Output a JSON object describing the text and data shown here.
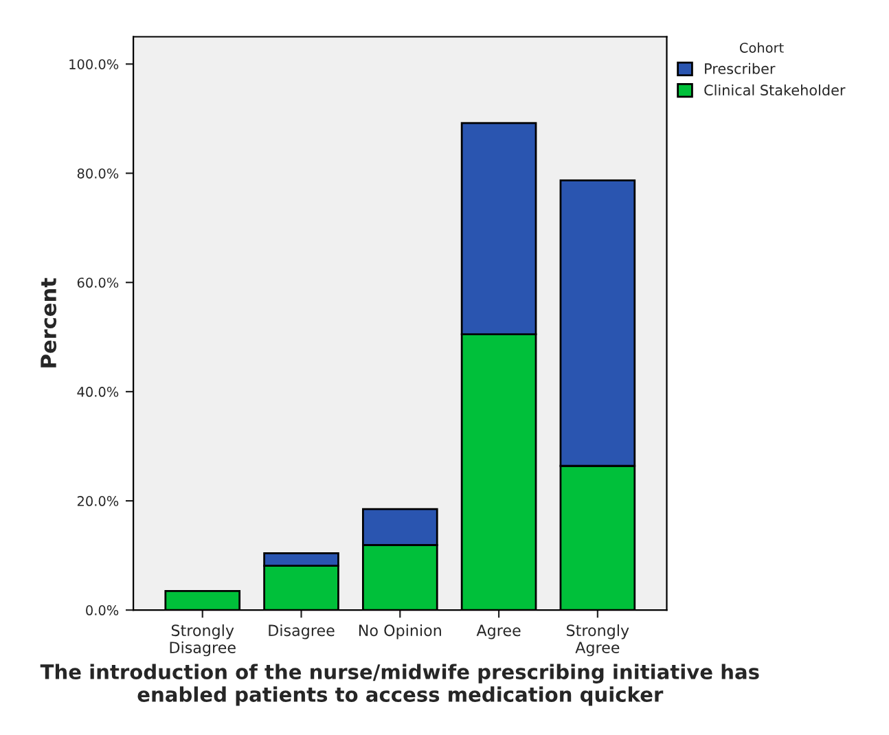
{
  "chart_data": {
    "type": "bar",
    "stacked": true,
    "xlabel": "The introduction of the nurse/midwife prescribing initiative has enabled patients to access medication quicker",
    "ylabel": "Percent",
    "legend_title": "Cohort",
    "legend": "top right",
    "categories": [
      "Strongly\nDisagree",
      "Disagree",
      "No Opinion",
      "Agree",
      "Strongly\nAgree"
    ],
    "series": [
      {
        "name": "Clinical Stakeholder",
        "color": "#00c03a",
        "values": [
          3.5,
          8.1,
          11.9,
          50.5,
          26.4
        ]
      },
      {
        "name": "Prescriber",
        "color": "#2a55b0",
        "values": [
          null,
          2.3,
          6.6,
          38.7,
          52.3
        ]
      }
    ],
    "ylim": [
      0,
      105
    ],
    "yticks": [
      {
        "value": 0,
        "label": "0.0%"
      },
      {
        "value": 20,
        "label": "20.0%"
      },
      {
        "value": 40,
        "label": "40.0%"
      },
      {
        "value": 60,
        "label": "60.0%"
      },
      {
        "value": 80,
        "label": "80.0%"
      },
      {
        "value": 100,
        "label": "100.0%"
      }
    ],
    "grid": false
  }
}
